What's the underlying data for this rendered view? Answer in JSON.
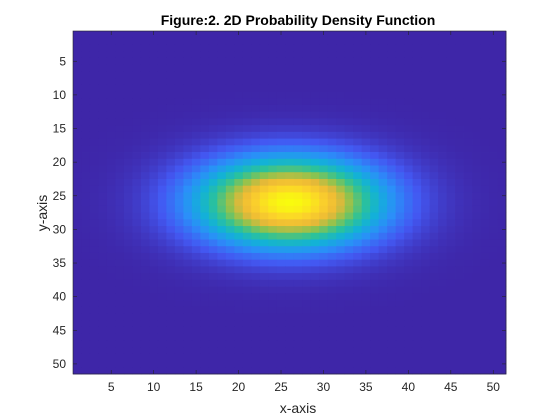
{
  "chart_data": {
    "type": "heatmap",
    "title": "Figure:2. 2D Probability Density Function",
    "xlabel": "x-axis",
    "ylabel": "y-axis",
    "xlim": [
      0.5,
      51.5
    ],
    "ylim": [
      0.5,
      51.5
    ],
    "y_direction": "reversed",
    "grid": false,
    "legend": "none",
    "colormap": "parula",
    "colormap_stops": [
      "#3e26a8",
      "#4358f2",
      "#2b8ef9",
      "#12b1d8",
      "#2bc29a",
      "#8bc34f",
      "#ecb836",
      "#fbd12b",
      "#f9fb0e"
    ],
    "x_ticks": [
      5,
      10,
      15,
      20,
      25,
      30,
      35,
      40,
      45,
      50
    ],
    "y_ticks": [
      5,
      10,
      15,
      20,
      25,
      30,
      35,
      40,
      45,
      50
    ],
    "grid_size": [
      51,
      51
    ],
    "peak": {
      "x": 26,
      "y": 26
    },
    "spread": {
      "x": 7.5,
      "y": 4.5
    },
    "color_limits": [
      0,
      1
    ]
  }
}
